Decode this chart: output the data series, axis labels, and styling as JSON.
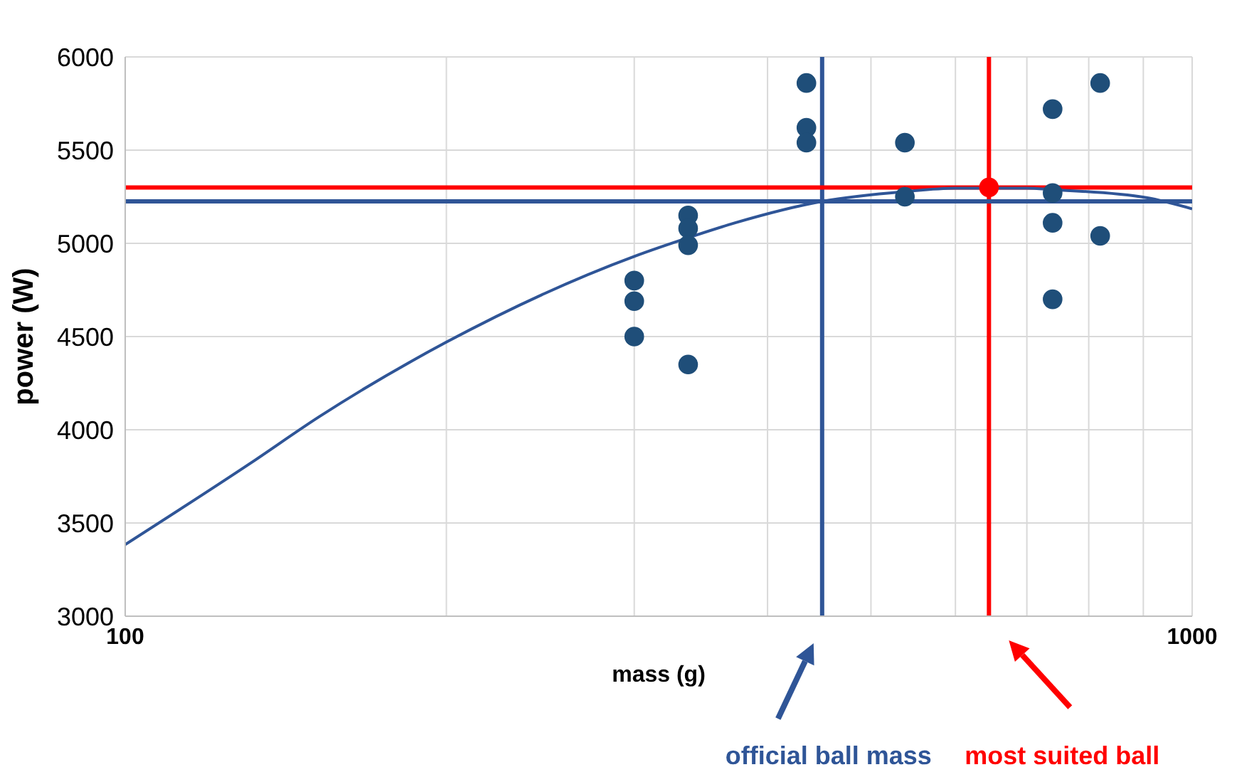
{
  "chart_data": {
    "type": "scatter",
    "xlabel": "mass (g)",
    "ylabel": "power (W)",
    "log": "x",
    "xlim": [
      100,
      1000
    ],
    "xticks": [
      100,
      {
        "value": 200,
        "label": null
      },
      {
        "value": 300,
        "label": null
      },
      {
        "value": 400,
        "label": null
      },
      {
        "value": 500,
        "label": null
      },
      {
        "value": 600,
        "label": null
      },
      {
        "value": 700,
        "label": null
      },
      {
        "value": 800,
        "label": null
      },
      {
        "value": 900,
        "label": null
      },
      1000
    ],
    "ylim": [
      3000,
      6000
    ],
    "yticks": [
      3000,
      3500,
      4000,
      4500,
      5000,
      5500,
      6000
    ],
    "grid": true,
    "legend": false,
    "marker": "circle",
    "series": [
      {
        "color": "#1f4e79",
        "x": [
          300,
          300,
          300,
          337,
          337,
          337,
          337,
          435,
          435,
          435,
          538,
          538,
          740,
          740,
          740,
          740,
          820,
          820
        ],
        "values": [
          4800,
          4690,
          4500,
          5150,
          5080,
          4990,
          4350,
          5860,
          5620,
          5540,
          5540,
          5250,
          5720,
          5270,
          5110,
          4700,
          5860,
          5040
        ]
      },
      {
        "color": "#ff0000",
        "x": [
          645
        ],
        "values": [
          5300
        ]
      },
      {
        "type": "line",
        "color": "#2f5597",
        "marker": "none",
        "x": [
          100,
          131,
          152,
          200,
          300,
          337,
          373,
          450,
          538,
          600,
          700,
          740,
          906,
          1000
        ],
        "values": [
          3384,
          3820,
          4070,
          4470,
          4930,
          5030,
          5110,
          5225,
          5278,
          5296,
          5296,
          5288,
          5245,
          5185
        ]
      }
    ],
    "ref_lines": [
      {
        "axis": "x",
        "value": 450,
        "label": "official ball mass",
        "color": "#2f5597"
      },
      {
        "axis": "x",
        "value": 645,
        "label": "most suited ball",
        "color": "#ff0000"
      },
      {
        "axis": "y",
        "value": 5225,
        "color": "#2f5597"
      },
      {
        "axis": "y",
        "value": 5300,
        "color": "#ff0000"
      }
    ]
  }
}
